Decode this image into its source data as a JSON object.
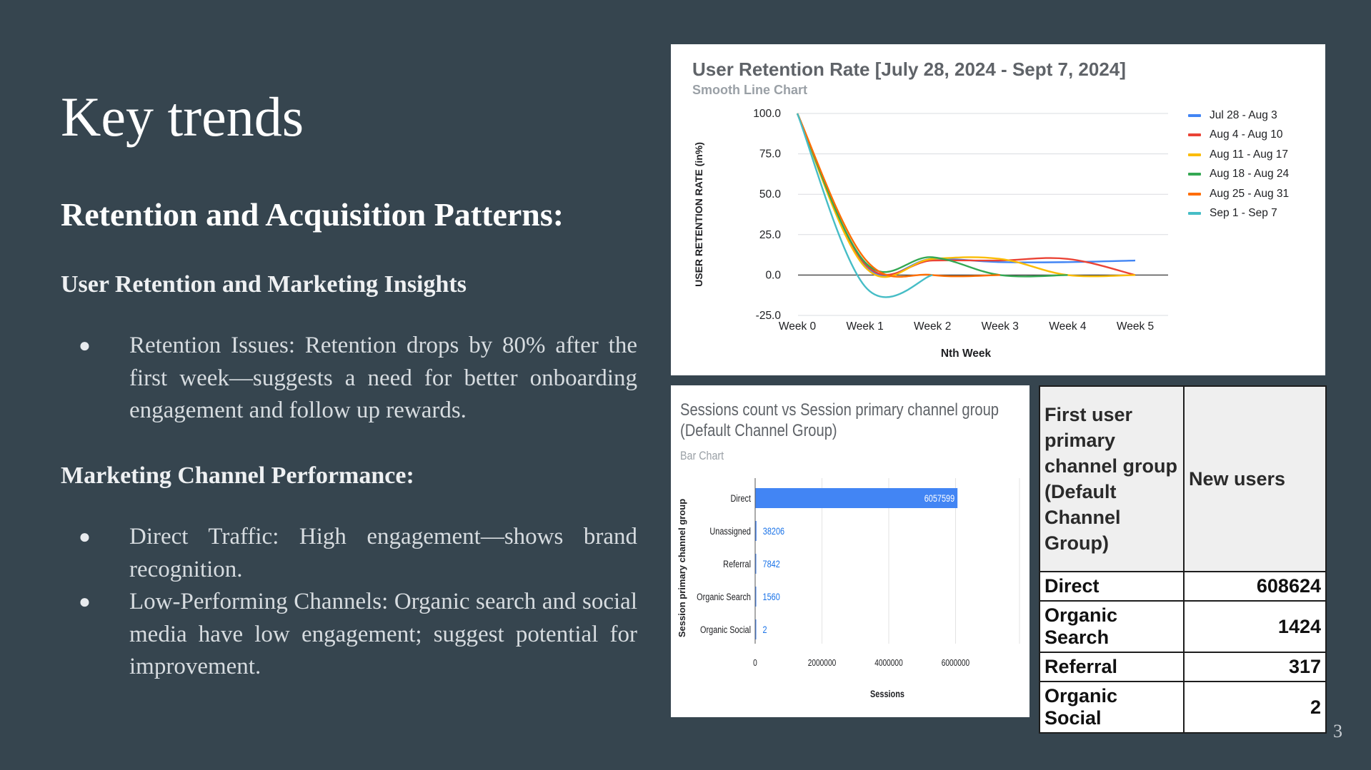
{
  "slide": {
    "title": "Key trends",
    "subtitle": "Retention and Acquisition Patterns:",
    "section1": "User Retention and Marketing Insights",
    "bullets1": [
      "Retention Issues: Retention drops by 80% after the first week—suggests a need for better onboarding engagement and follow up rewards."
    ],
    "section2": "Marketing Channel Performance:",
    "bullets2": [
      "Direct Traffic: High engagement—shows brand recognition.",
      "Low-Performing Channels: Organic search and social media have low engagement; suggest potential for improvement."
    ],
    "bullet_glyph": "●",
    "page_number": "3"
  },
  "chart_data": [
    {
      "type": "line",
      "title": "User Retention Rate [July 28, 2024 - Sept 7, 2024]",
      "subtitle": "Smooth Line Chart",
      "xlabel": "Nth Week",
      "ylabel": "USER RETENTION RATE (in%)",
      "categories": [
        "Week 0",
        "Week 1",
        "Week 2",
        "Week 3",
        "Week 4",
        "Week 5"
      ],
      "y_ticks": [
        "100.0",
        "75.0",
        "50.0",
        "25.0",
        "0.0",
        "-25.0"
      ],
      "ylim": [
        -25,
        100
      ],
      "grid": true,
      "legend_position": "right",
      "series": [
        {
          "name": "Jul 28 - Aug 3",
          "color": "#4285f4",
          "values": [
            100,
            6,
            10,
            8,
            8,
            9
          ]
        },
        {
          "name": "Aug 4 - Aug 10",
          "color": "#ea4335",
          "values": [
            100,
            7,
            9,
            9,
            10,
            0
          ]
        },
        {
          "name": "Aug 11 - Aug 17",
          "color": "#fbbc04",
          "values": [
            100,
            5,
            10,
            10,
            0,
            0
          ]
        },
        {
          "name": "Aug 18 - Aug 24",
          "color": "#34a853",
          "values": [
            100,
            8,
            11,
            0,
            0,
            null
          ]
        },
        {
          "name": "Aug 25 - Aug 31",
          "color": "#ff6d01",
          "values": [
            100,
            10,
            0,
            0,
            null,
            null
          ]
        },
        {
          "name": "Sep 1 - Sep 7",
          "color": "#46bdc6",
          "values": [
            100,
            -7,
            0,
            null,
            null,
            null
          ]
        }
      ]
    },
    {
      "type": "bar",
      "orientation": "horizontal",
      "title": "Sessions count vs Session primary channel group (Default Channel Group)",
      "subtitle": "Bar Chart",
      "xlabel": "Sessions",
      "ylabel": "Session primary channel group",
      "categories": [
        "Direct",
        "Unassigned",
        "Referral",
        "Organic Search",
        "Organic Social"
      ],
      "values": [
        6057599,
        38206,
        7842,
        1560,
        2
      ],
      "x_ticks": [
        "0",
        "2000000",
        "4000000",
        "6000000"
      ],
      "xlim": [
        0,
        8000000
      ],
      "color": "#4285f4"
    },
    {
      "type": "table",
      "columns": [
        "First user primary channel group (Default Channel Group)",
        "New users"
      ],
      "rows": [
        [
          "Direct",
          "608624"
        ],
        [
          "Organic Search",
          "1424"
        ],
        [
          "Referral",
          "317"
        ],
        [
          "Organic Social",
          "2"
        ]
      ]
    }
  ]
}
